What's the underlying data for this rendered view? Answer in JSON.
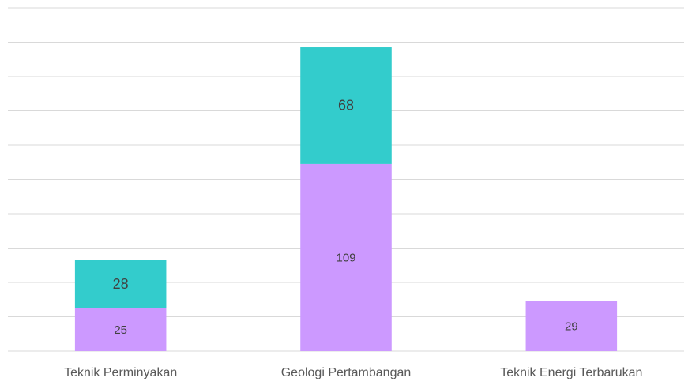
{
  "chart_data": {
    "type": "stacked_bar",
    "categories": [
      "Teknik Perminyakan",
      "Geologi Pertambangan",
      "Teknik Energi Terbarukan"
    ],
    "series": [
      {
        "color": "#cc99ff",
        "values": [
          25,
          109,
          29
        ]
      },
      {
        "color": "#33cccc",
        "values": [
          28,
          68,
          null
        ]
      }
    ],
    "ylim": [
      0,
      200
    ],
    "yticks": [
      0,
      20,
      40,
      60,
      80,
      100,
      120,
      140,
      160,
      180,
      200
    ],
    "grid": true
  }
}
